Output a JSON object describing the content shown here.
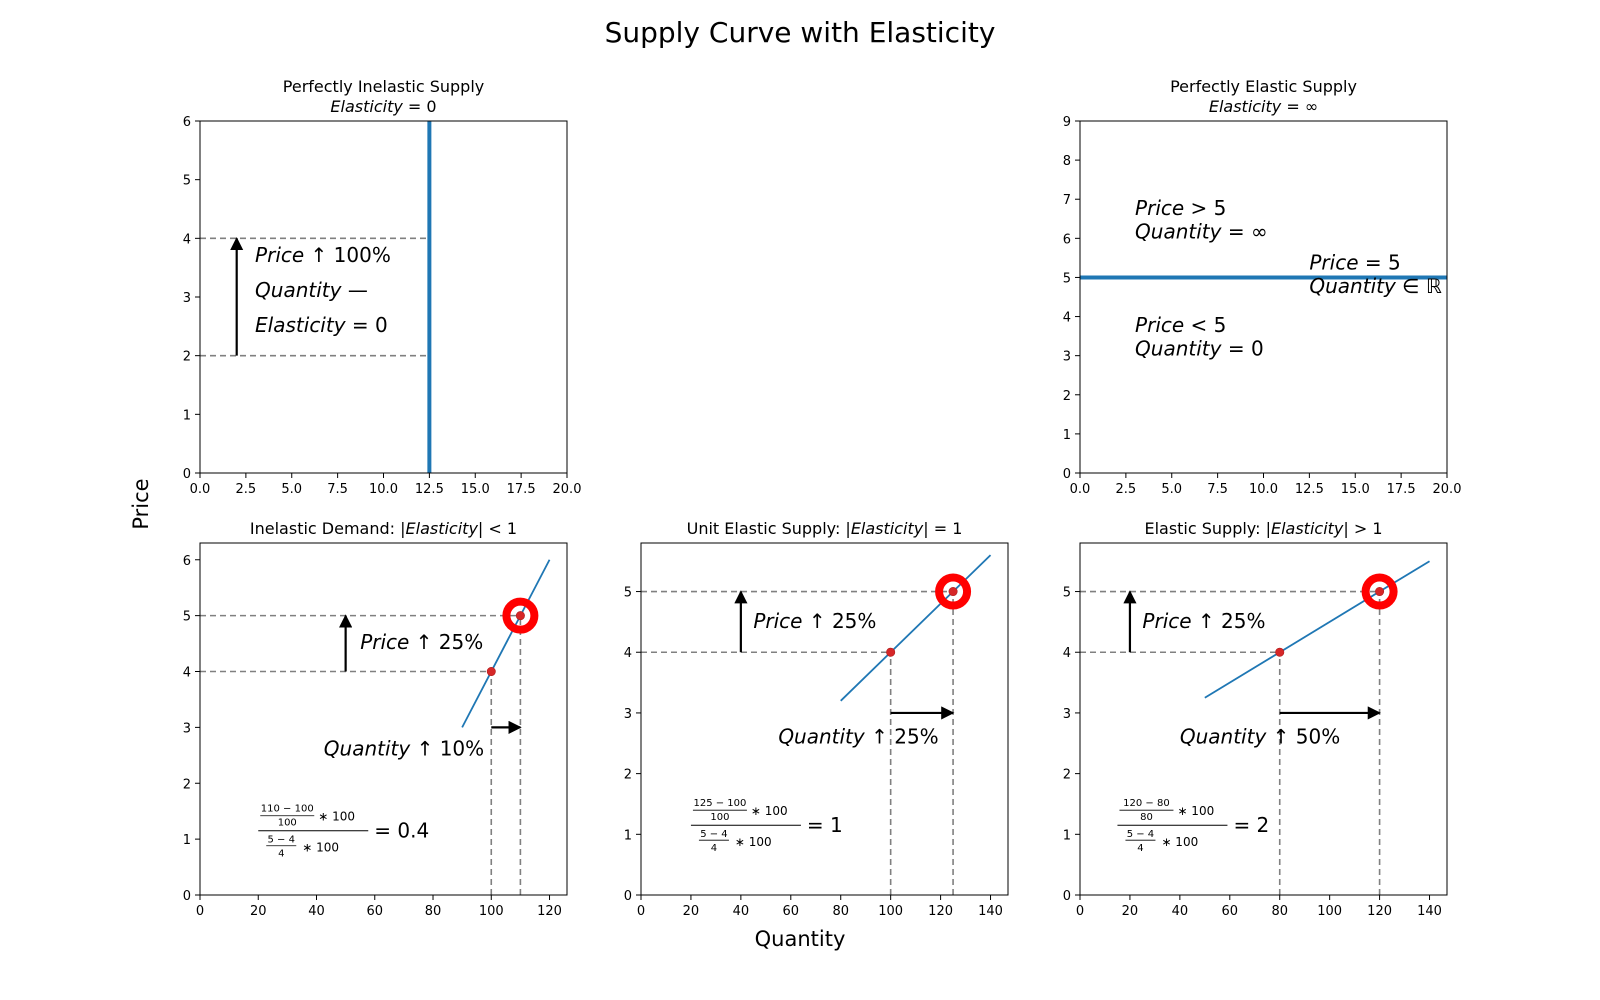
{
  "figure": {
    "title": "Supply Curve with Elasticity",
    "xlabel": "Quantity",
    "ylabel": "Price"
  },
  "colors": {
    "curve": "#1f77b4",
    "point": "#d62728",
    "ring": "#ff0000",
    "guide": "#808080",
    "arrow": "#000000"
  },
  "chart_data": [
    {
      "id": "inelastic-perfect",
      "type": "line",
      "title": "Perfectly Inelastic Supply",
      "subtitle_name": "Elasticity",
      "subtitle_value": "= 0",
      "xlim": [
        0,
        20
      ],
      "ylim": [
        0,
        6
      ],
      "xticks": [
        "0.0",
        "2.5",
        "5.0",
        "7.5",
        "10.0",
        "12.5",
        "15.0",
        "17.5",
        "20.0"
      ],
      "yticks": [
        "0",
        "1",
        "2",
        "3",
        "4",
        "5",
        "6"
      ],
      "curve": {
        "x": [
          12.5,
          12.5
        ],
        "y": [
          0,
          6
        ]
      },
      "guides": [
        {
          "x": [
            0,
            12.5
          ],
          "y": [
            4,
            4
          ]
        },
        {
          "x": [
            0,
            12.5
          ],
          "y": [
            2,
            2
          ]
        }
      ],
      "arrow": {
        "x": [
          2,
          2
        ],
        "y": [
          2,
          4
        ]
      },
      "annotations": [
        {
          "name": "Price",
          "op": " ↑ 100%",
          "x": 3,
          "y": 3.6
        },
        {
          "name": "Quantity",
          "op": " —",
          "x": 3,
          "y": 3.0
        },
        {
          "name": "Elasticity",
          "op": " = 0",
          "x": 3,
          "y": 2.4
        }
      ]
    },
    {
      "id": "elastic-perfect",
      "type": "line",
      "title": "Perfectly Elastic Supply",
      "subtitle_name": "Elasticity",
      "subtitle_value": "= ∞",
      "xlim": [
        0,
        20
      ],
      "ylim": [
        0,
        9
      ],
      "xticks": [
        "0.0",
        "2.5",
        "5.0",
        "7.5",
        "10.0",
        "12.5",
        "15.0",
        "17.5",
        "20.0"
      ],
      "yticks": [
        "0",
        "1",
        "2",
        "3",
        "4",
        "5",
        "6",
        "7",
        "8",
        "9"
      ],
      "curve": {
        "x": [
          0,
          20
        ],
        "y": [
          5,
          5
        ]
      },
      "annotations": [
        {
          "name": "Price",
          "op": " > 5",
          "x": 3,
          "y": 6.6
        },
        {
          "name": "Quantity",
          "op": " = ∞",
          "x": 3,
          "y": 6.0
        },
        {
          "name": "Price",
          "op": " = 5",
          "x": 12.5,
          "y": 5.2
        },
        {
          "name": "Quantity",
          "op": " ∈ ℝ",
          "x": 12.5,
          "y": 4.6
        },
        {
          "name": "Price",
          "op": " < 5",
          "x": 3,
          "y": 3.6
        },
        {
          "name": "Quantity",
          "op": " = 0",
          "x": 3,
          "y": 3.0
        }
      ]
    },
    {
      "id": "inelastic",
      "type": "line",
      "title_prefix": "Inelastic Demand: |",
      "title_name": "Elasticity",
      "title_suffix": "| < 1",
      "xlim": [
        0,
        126
      ],
      "ylim": [
        0,
        6.3
      ],
      "xticks": [
        "0",
        "20",
        "40",
        "60",
        "80",
        "100",
        "120"
      ],
      "yticks": [
        "0",
        "1",
        "2",
        "3",
        "4",
        "5",
        "6"
      ],
      "curve": {
        "x": [
          90,
          120
        ],
        "y": [
          3,
          6
        ]
      },
      "points": [
        {
          "x": 100,
          "y": 4
        },
        {
          "x": 110,
          "y": 5
        }
      ],
      "highlight": {
        "x": 110,
        "y": 5
      },
      "guides": [
        {
          "x": [
            0,
            110
          ],
          "y": [
            5,
            5
          ]
        },
        {
          "x": [
            0,
            100
          ],
          "y": [
            4,
            4
          ]
        },
        {
          "x": [
            100,
            100
          ],
          "y": [
            0,
            4
          ]
        },
        {
          "x": [
            110,
            110
          ],
          "y": [
            0,
            5
          ]
        }
      ],
      "arrows": [
        {
          "x": [
            50,
            50
          ],
          "y": [
            4,
            5
          ]
        },
        {
          "x": [
            100,
            110
          ],
          "y": [
            3,
            3
          ]
        }
      ],
      "annotations": [
        {
          "name": "Price",
          "op": " ↑ 25%",
          "x": 55,
          "y": 4.4
        },
        {
          "name": "Quantity",
          "op": " ↑ 10%",
          "x": 42.5,
          "y": 2.5
        }
      ],
      "formula": {
        "n_num": "110 − 100",
        "n_den": "100",
        "d_num": "5 − 4",
        "d_den": "4",
        "mul": "∗ 100",
        "result": "= 0.4",
        "x": 20,
        "y": 1.15
      }
    },
    {
      "id": "unit",
      "type": "line",
      "title_prefix": "Unit Elastic Supply: |",
      "title_name": "Elasticity",
      "title_suffix": "| = 1",
      "xlim": [
        0,
        147
      ],
      "ylim": [
        0,
        5.8
      ],
      "xticks": [
        "0",
        "20",
        "40",
        "60",
        "80",
        "100",
        "120",
        "140"
      ],
      "yticks": [
        "0",
        "1",
        "2",
        "3",
        "4",
        "5"
      ],
      "curve": {
        "x": [
          80,
          140
        ],
        "y": [
          3.2,
          5.6
        ]
      },
      "points": [
        {
          "x": 100,
          "y": 4
        },
        {
          "x": 125,
          "y": 5
        }
      ],
      "highlight": {
        "x": 125,
        "y": 5
      },
      "guides": [
        {
          "x": [
            0,
            125
          ],
          "y": [
            5,
            5
          ]
        },
        {
          "x": [
            0,
            100
          ],
          "y": [
            4,
            4
          ]
        },
        {
          "x": [
            100,
            100
          ],
          "y": [
            0,
            4
          ]
        },
        {
          "x": [
            125,
            125
          ],
          "y": [
            0,
            5
          ]
        }
      ],
      "arrows": [
        {
          "x": [
            40,
            40
          ],
          "y": [
            4,
            5
          ]
        },
        {
          "x": [
            100,
            125
          ],
          "y": [
            3,
            3
          ]
        }
      ],
      "annotations": [
        {
          "name": "Price",
          "op": " ↑ 25%",
          "x": 45,
          "y": 4.4
        },
        {
          "name": "Quantity",
          "op": " ↑ 25%",
          "x": 55,
          "y": 2.5
        }
      ],
      "formula": {
        "n_num": "125 − 100",
        "n_den": "100",
        "d_num": "5 − 4",
        "d_den": "4",
        "mul": "∗ 100",
        "result": "= 1",
        "x": 20,
        "y": 1.15
      }
    },
    {
      "id": "elastic",
      "type": "line",
      "title_prefix": "Elastic Supply: |",
      "title_name": "Elasticity",
      "title_suffix": "| > 1",
      "xlim": [
        0,
        147
      ],
      "ylim": [
        0,
        5.8
      ],
      "xticks": [
        "0",
        "20",
        "40",
        "60",
        "80",
        "100",
        "120",
        "140"
      ],
      "yticks": [
        "0",
        "1",
        "2",
        "3",
        "4",
        "5"
      ],
      "curve": {
        "x": [
          50,
          140
        ],
        "y": [
          3.25,
          5.5
        ]
      },
      "points": [
        {
          "x": 80,
          "y": 4
        },
        {
          "x": 120,
          "y": 5
        }
      ],
      "highlight": {
        "x": 120,
        "y": 5
      },
      "guides": [
        {
          "x": [
            0,
            120
          ],
          "y": [
            5,
            5
          ]
        },
        {
          "x": [
            0,
            80
          ],
          "y": [
            4,
            4
          ]
        },
        {
          "x": [
            80,
            80
          ],
          "y": [
            0,
            4
          ]
        },
        {
          "x": [
            120,
            120
          ],
          "y": [
            0,
            5
          ]
        }
      ],
      "arrows": [
        {
          "x": [
            20,
            20
          ],
          "y": [
            4,
            5
          ]
        },
        {
          "x": [
            80,
            120
          ],
          "y": [
            3,
            3
          ]
        }
      ],
      "annotations": [
        {
          "name": "Price",
          "op": " ↑ 25%",
          "x": 25,
          "y": 4.4
        },
        {
          "name": "Quantity",
          "op": " ↑ 50%",
          "x": 40,
          "y": 2.5
        }
      ],
      "formula": {
        "n_num": "120 − 80",
        "n_den": "80",
        "d_num": "5 − 4",
        "d_den": "4",
        "mul": "∗ 100",
        "result": "= 2",
        "x": 15,
        "y": 1.15
      }
    }
  ]
}
